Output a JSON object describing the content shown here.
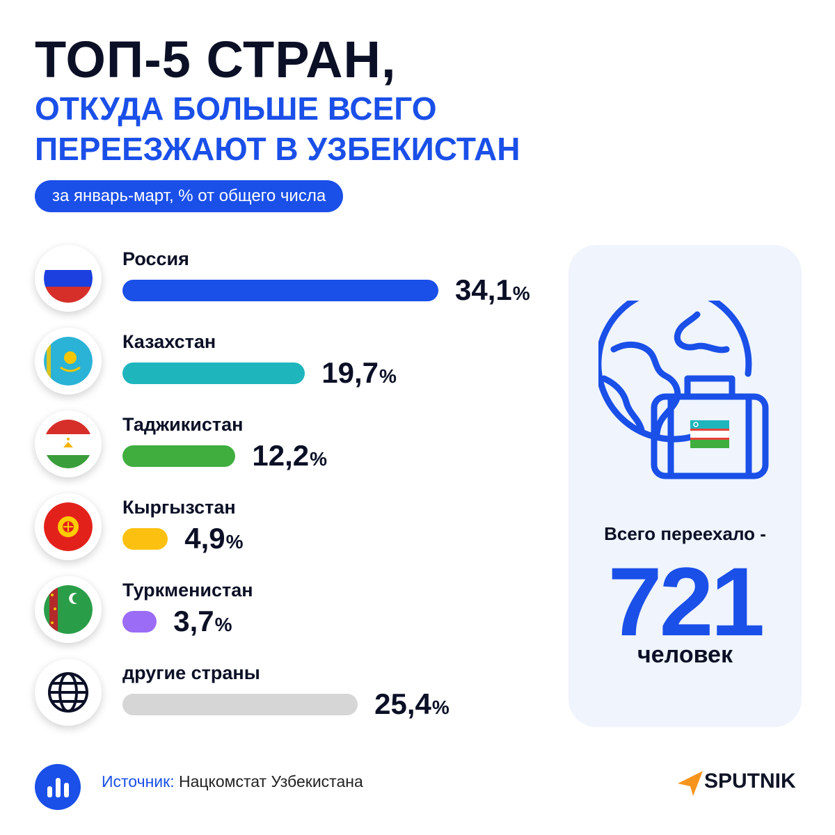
{
  "title": {
    "line1": "ТОП-5 СТРАН,",
    "line2": "ОТКУДА БОЛЬШЕ ВСЕГО",
    "line3": "ПЕРЕЕЗЖАЮТ В УЗБЕКИСТАН"
  },
  "subtitle": "за январь-март, % от общего числа",
  "chart_data": {
    "type": "bar",
    "unit": "%",
    "categories": [
      "Россия",
      "Казахстан",
      "Таджикистан",
      "Кыргызстан",
      "Туркменистан",
      "другие страны"
    ],
    "values": [
      34.1,
      19.7,
      12.2,
      4.9,
      3.7,
      25.4
    ],
    "value_labels": [
      "34,1",
      "19,7",
      "12,2",
      "4,9",
      "3,7",
      "25,4"
    ],
    "colors": [
      "#1a4fe8",
      "#1eb5bc",
      "#3fae3f",
      "#fcc110",
      "#9b6cf5",
      "#d6d6d6"
    ],
    "icons": [
      "russia-flag-icon",
      "kazakhstan-flag-icon",
      "tajikistan-flag-icon",
      "kyrgyzstan-flag-icon",
      "turkmenistan-flag-icon",
      "globe-icon"
    ]
  },
  "total": {
    "label": "Всего переехало -",
    "value": "721",
    "unit": "человек"
  },
  "source": {
    "label": "Источник:",
    "text": "Нацкомстат Узбекистана"
  },
  "brand": "SPUTNIK",
  "colors": {
    "accent": "#1a4fe8",
    "panel": "#eff4fd",
    "text": "#0b1026"
  }
}
